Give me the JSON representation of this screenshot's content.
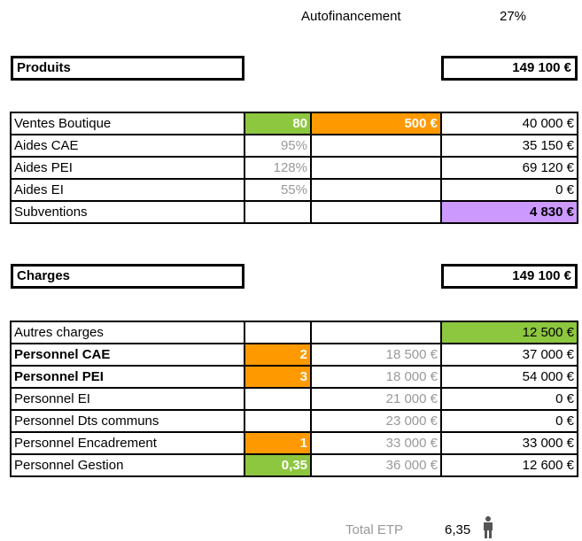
{
  "header": {
    "label": "Autofinancement",
    "value": "27%"
  },
  "produits": {
    "label": "Produits",
    "total": "149 100 €",
    "rows": [
      [
        "Ventes Boutique",
        "80",
        "500 €",
        "40 000 €"
      ],
      [
        "Aides CAE",
        "95%",
        "",
        "35 150 €"
      ],
      [
        "Aides PEI",
        "128%",
        "",
        "69 120 €"
      ],
      [
        "Aides EI",
        "55%",
        "",
        "0 €"
      ],
      [
        "Subventions",
        "",
        "",
        "4 830 €"
      ]
    ]
  },
  "charges": {
    "label": "Charges",
    "total": "149 100 €",
    "rows": [
      [
        "Autres charges",
        "",
        "",
        "12 500 €"
      ],
      [
        "Personnel CAE",
        "2",
        "18 500 €",
        "37 000 €"
      ],
      [
        "Personnel PEI",
        "3",
        "18 000 €",
        "54 000 €"
      ],
      [
        "Personnel EI",
        "",
        "21 000 €",
        "0 €"
      ],
      [
        "Personnel Dts communs",
        "",
        "23 000 €",
        "0 €"
      ],
      [
        "Personnel Encadrement",
        "1",
        "33 000 €",
        "33 000 €"
      ],
      [
        "Personnel Gestion",
        "0,35",
        "36 000 €",
        "12 600 €"
      ]
    ]
  },
  "footer": {
    "label": "Total ETP",
    "value": "6,35"
  }
}
